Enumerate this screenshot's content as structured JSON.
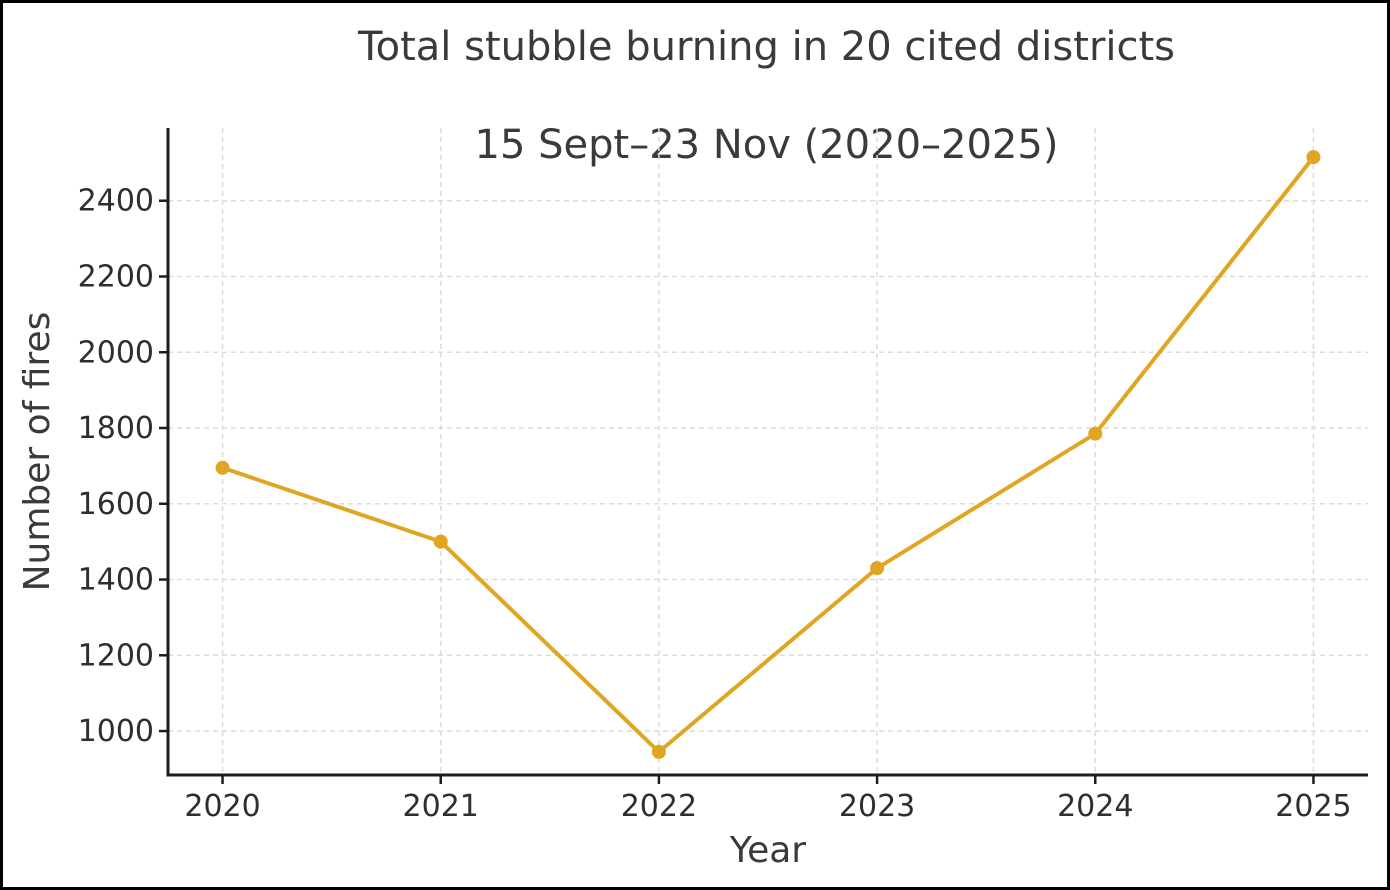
{
  "header": {
    "title_line1": "Total stubble burning in 20 cited districts",
    "title_line2": "15 Sept–23 Nov (2020–2025)"
  },
  "chart_data": {
    "type": "line",
    "title": "Total stubble burning in 20 cited districts\n15 Sept–23 Nov (2020–2025)",
    "x": [
      2020,
      2021,
      2022,
      2023,
      2024,
      2025
    ],
    "series": [
      {
        "name": "Number of fires",
        "values": [
          1695,
          1500,
          945,
          1430,
          1785,
          2515
        ]
      }
    ],
    "xlabel": "Year",
    "ylabel": "Number of fires",
    "xlim": [
      2019.75,
      2025.25
    ],
    "ylim": [
      884,
      2592
    ],
    "xticks": [
      2020,
      2021,
      2022,
      2023,
      2024,
      2025
    ],
    "xtick_labels": [
      "2020",
      "2021",
      "2022",
      "2023",
      "2024",
      "2025"
    ],
    "yticks": [
      1000,
      1200,
      1400,
      1600,
      1800,
      2000,
      2200,
      2400
    ],
    "ytick_labels": [
      "1000",
      "1200",
      "1400",
      "1600",
      "1800",
      "2000",
      "2200",
      "2400"
    ],
    "grid": true,
    "grid_style": "dashed",
    "legend": false,
    "line_color": "#E0A521",
    "marker": "circle",
    "grid_color": "#DCDCDC",
    "axis_color": "#1C1C1C",
    "text_color": "#3A3A3A",
    "tick_text_color": "#2E2E2E",
    "background_color": "#FFFFFF",
    "frame_border_color": "#000000"
  }
}
